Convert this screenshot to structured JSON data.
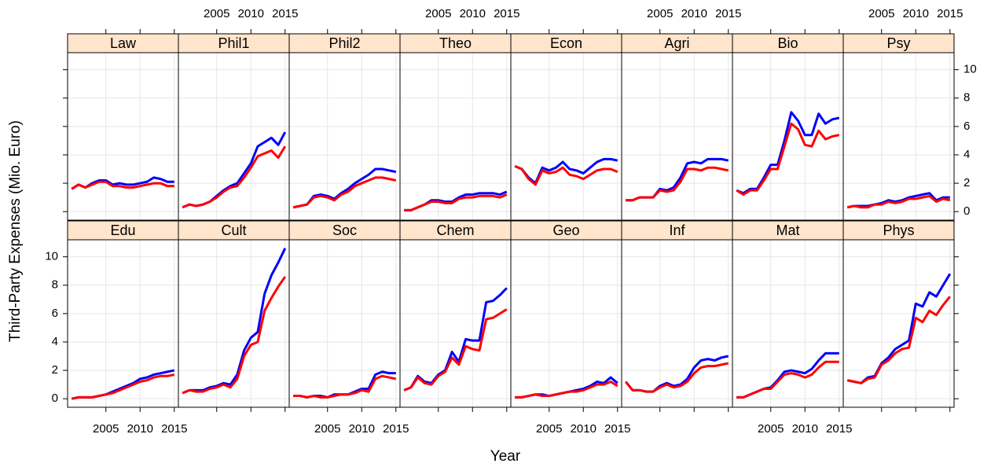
{
  "chart_data": {
    "type": "line",
    "xlabel": "Year",
    "ylabel": "Third-Party Expenses (Mio. Euro)",
    "x": [
      2000,
      2001,
      2002,
      2003,
      2004,
      2005,
      2006,
      2007,
      2008,
      2009,
      2010,
      2011,
      2012,
      2013,
      2014,
      2015
    ],
    "xlim": [
      1999.4,
      2015.6
    ],
    "xticks": [
      2005,
      2010,
      2015
    ],
    "ylim": [
      -0.6,
      11.2
    ],
    "yticks": [
      0,
      2,
      4,
      6,
      8,
      10
    ],
    "grid": true,
    "strip_color": "#ffe5cc",
    "panels": [
      {
        "title": "Law",
        "series": [
          {
            "color": "#0000ff",
            "values": [
              1.6,
              1.9,
              1.7,
              2.0,
              2.2,
              2.2,
              1.9,
              2.0,
              1.9,
              1.9,
              2.0,
              2.1,
              2.4,
              2.3,
              2.1,
              2.1
            ]
          },
          {
            "color": "#ff0000",
            "values": [
              1.6,
              1.9,
              1.7,
              1.9,
              2.1,
              2.1,
              1.8,
              1.8,
              1.7,
              1.7,
              1.8,
              1.9,
              2.0,
              2.0,
              1.8,
              1.8
            ]
          }
        ]
      },
      {
        "title": "Phil1",
        "series": [
          {
            "color": "#0000ff",
            "values": [
              0.3,
              0.5,
              0.4,
              0.5,
              0.7,
              1.1,
              1.5,
              1.8,
              2.0,
              2.7,
              3.4,
              4.6,
              4.9,
              5.2,
              4.7,
              5.6
            ]
          },
          {
            "color": "#ff0000",
            "values": [
              0.3,
              0.5,
              0.4,
              0.5,
              0.7,
              1.0,
              1.4,
              1.7,
              1.8,
              2.4,
              3.1,
              3.9,
              4.1,
              4.3,
              3.8,
              4.6
            ]
          }
        ]
      },
      {
        "title": "Phil2",
        "series": [
          {
            "color": "#0000ff",
            "values": [
              0.3,
              0.4,
              0.5,
              1.1,
              1.2,
              1.1,
              0.9,
              1.3,
              1.6,
              2.0,
              2.3,
              2.6,
              3.0,
              3.0,
              2.9,
              2.8
            ]
          },
          {
            "color": "#ff0000",
            "values": [
              0.3,
              0.4,
              0.5,
              1.0,
              1.1,
              1.0,
              0.8,
              1.2,
              1.4,
              1.8,
              2.0,
              2.2,
              2.4,
              2.4,
              2.3,
              2.2
            ]
          }
        ]
      },
      {
        "title": "Theo",
        "series": [
          {
            "color": "#0000ff",
            "values": [
              0.1,
              0.1,
              0.3,
              0.5,
              0.8,
              0.8,
              0.7,
              0.7,
              1.0,
              1.2,
              1.2,
              1.3,
              1.3,
              1.3,
              1.2,
              1.4
            ]
          },
          {
            "color": "#ff0000",
            "values": [
              0.1,
              0.1,
              0.3,
              0.5,
              0.7,
              0.7,
              0.6,
              0.6,
              0.9,
              1.0,
              1.0,
              1.1,
              1.1,
              1.1,
              1.0,
              1.2
            ]
          }
        ]
      },
      {
        "title": "Econ",
        "series": [
          {
            "color": "#0000ff",
            "values": [
              3.2,
              3.0,
              2.4,
              2.0,
              3.1,
              2.9,
              3.1,
              3.5,
              3.0,
              2.9,
              2.7,
              3.1,
              3.5,
              3.7,
              3.7,
              3.6
            ]
          },
          {
            "color": "#ff0000",
            "values": [
              3.2,
              3.0,
              2.3,
              1.9,
              2.9,
              2.7,
              2.8,
              3.1,
              2.6,
              2.5,
              2.3,
              2.6,
              2.9,
              3.0,
              3.0,
              2.8
            ]
          }
        ]
      },
      {
        "title": "Agri",
        "series": [
          {
            "color": "#0000ff",
            "values": [
              0.8,
              0.8,
              1.0,
              1.0,
              1.0,
              1.6,
              1.5,
              1.7,
              2.4,
              3.4,
              3.5,
              3.4,
              3.7,
              3.7,
              3.7,
              3.6
            ]
          },
          {
            "color": "#ff0000",
            "values": [
              0.8,
              0.8,
              1.0,
              1.0,
              1.0,
              1.5,
              1.4,
              1.5,
              2.1,
              3.0,
              3.0,
              2.9,
              3.1,
              3.1,
              3.0,
              2.9
            ]
          }
        ]
      },
      {
        "title": "Bio",
        "series": [
          {
            "color": "#0000ff",
            "values": [
              1.5,
              1.3,
              1.6,
              1.6,
              2.4,
              3.3,
              3.3,
              5.0,
              7.0,
              6.4,
              5.4,
              5.4,
              6.9,
              6.2,
              6.5,
              6.6
            ]
          },
          {
            "color": "#ff0000",
            "values": [
              1.5,
              1.2,
              1.5,
              1.5,
              2.2,
              3.0,
              3.0,
              4.6,
              6.2,
              5.8,
              4.7,
              4.6,
              5.7,
              5.1,
              5.3,
              5.4
            ]
          }
        ]
      },
      {
        "title": "Psy",
        "series": [
          {
            "color": "#0000ff",
            "values": [
              0.3,
              0.4,
              0.4,
              0.4,
              0.5,
              0.6,
              0.8,
              0.7,
              0.8,
              1.0,
              1.1,
              1.2,
              1.3,
              0.8,
              1.0,
              1.0
            ]
          },
          {
            "color": "#ff0000",
            "values": [
              0.3,
              0.4,
              0.3,
              0.3,
              0.5,
              0.5,
              0.7,
              0.6,
              0.7,
              0.9,
              0.9,
              1.0,
              1.1,
              0.7,
              0.9,
              0.8
            ]
          }
        ]
      },
      {
        "title": "Edu",
        "series": [
          {
            "color": "#0000ff",
            "values": [
              0.0,
              0.1,
              0.1,
              0.1,
              0.2,
              0.3,
              0.5,
              0.7,
              0.9,
              1.1,
              1.4,
              1.5,
              1.7,
              1.8,
              1.9,
              2.0
            ]
          },
          {
            "color": "#ff0000",
            "values": [
              0.0,
              0.1,
              0.1,
              0.1,
              0.2,
              0.3,
              0.4,
              0.6,
              0.8,
              1.0,
              1.2,
              1.3,
              1.5,
              1.6,
              1.6,
              1.7
            ]
          }
        ]
      },
      {
        "title": "Cult",
        "series": [
          {
            "color": "#0000ff",
            "values": [
              0.4,
              0.6,
              0.6,
              0.6,
              0.8,
              0.9,
              1.1,
              1.0,
              1.7,
              3.4,
              4.3,
              4.7,
              7.4,
              8.7,
              9.6,
              10.6
            ]
          },
          {
            "color": "#ff0000",
            "values": [
              0.4,
              0.6,
              0.5,
              0.5,
              0.7,
              0.8,
              1.0,
              0.8,
              1.4,
              3.0,
              3.8,
              4.0,
              6.2,
              7.1,
              7.9,
              8.6
            ]
          }
        ]
      },
      {
        "title": "Soc",
        "series": [
          {
            "color": "#0000ff",
            "values": [
              0.2,
              0.2,
              0.1,
              0.2,
              0.2,
              0.1,
              0.3,
              0.3,
              0.3,
              0.5,
              0.7,
              0.7,
              1.7,
              1.9,
              1.8,
              1.8
            ]
          },
          {
            "color": "#ff0000",
            "values": [
              0.2,
              0.2,
              0.1,
              0.2,
              0.1,
              0.1,
              0.2,
              0.3,
              0.3,
              0.4,
              0.6,
              0.5,
              1.4,
              1.6,
              1.5,
              1.4
            ]
          }
        ]
      },
      {
        "title": "Chem",
        "series": [
          {
            "color": "#0000ff",
            "values": [
              0.6,
              0.8,
              1.6,
              1.2,
              1.1,
              1.7,
              2.0,
              3.3,
              2.6,
              4.2,
              4.1,
              4.1,
              6.8,
              6.9,
              7.3,
              7.8
            ]
          },
          {
            "color": "#ff0000",
            "values": [
              0.6,
              0.8,
              1.5,
              1.1,
              1.0,
              1.6,
              1.9,
              2.9,
              2.4,
              3.7,
              3.5,
              3.4,
              5.6,
              5.7,
              6.0,
              6.3
            ]
          }
        ]
      },
      {
        "title": "Geo",
        "series": [
          {
            "color": "#0000ff",
            "values": [
              0.1,
              0.1,
              0.2,
              0.3,
              0.3,
              0.2,
              0.3,
              0.4,
              0.5,
              0.6,
              0.7,
              0.9,
              1.2,
              1.1,
              1.5,
              1.1
            ]
          },
          {
            "color": "#ff0000",
            "values": [
              0.1,
              0.1,
              0.2,
              0.3,
              0.2,
              0.2,
              0.3,
              0.4,
              0.5,
              0.5,
              0.6,
              0.8,
              1.0,
              1.0,
              1.2,
              0.9
            ]
          }
        ]
      },
      {
        "title": "Inf",
        "series": [
          {
            "color": "#0000ff",
            "values": [
              1.2,
              0.6,
              0.6,
              0.5,
              0.5,
              0.9,
              1.1,
              0.9,
              1.0,
              1.4,
              2.2,
              2.7,
              2.8,
              2.7,
              2.9,
              3.0
            ]
          },
          {
            "color": "#ff0000",
            "values": [
              1.2,
              0.6,
              0.6,
              0.5,
              0.5,
              0.8,
              1.0,
              0.8,
              0.9,
              1.2,
              1.8,
              2.2,
              2.3,
              2.3,
              2.4,
              2.5
            ]
          }
        ]
      },
      {
        "title": "Mat",
        "series": [
          {
            "color": "#0000ff",
            "values": [
              0.1,
              0.1,
              0.3,
              0.5,
              0.7,
              0.8,
              1.3,
              1.9,
              2.0,
              1.9,
              1.8,
              2.1,
              2.7,
              3.2,
              3.2,
              3.2
            ]
          },
          {
            "color": "#ff0000",
            "values": [
              0.1,
              0.1,
              0.3,
              0.5,
              0.7,
              0.7,
              1.2,
              1.7,
              1.8,
              1.7,
              1.5,
              1.7,
              2.2,
              2.6,
              2.6,
              2.6
            ]
          }
        ]
      },
      {
        "title": "Phys",
        "series": [
          {
            "color": "#0000ff",
            "values": [
              1.3,
              1.2,
              1.1,
              1.5,
              1.6,
              2.5,
              2.9,
              3.5,
              3.8,
              4.1,
              6.7,
              6.5,
              7.5,
              7.2,
              8.0,
              8.8
            ]
          },
          {
            "color": "#ff0000",
            "values": [
              1.3,
              1.2,
              1.1,
              1.4,
              1.5,
              2.4,
              2.7,
              3.2,
              3.5,
              3.6,
              5.7,
              5.4,
              6.2,
              5.9,
              6.6,
              7.2
            ]
          }
        ]
      }
    ]
  }
}
